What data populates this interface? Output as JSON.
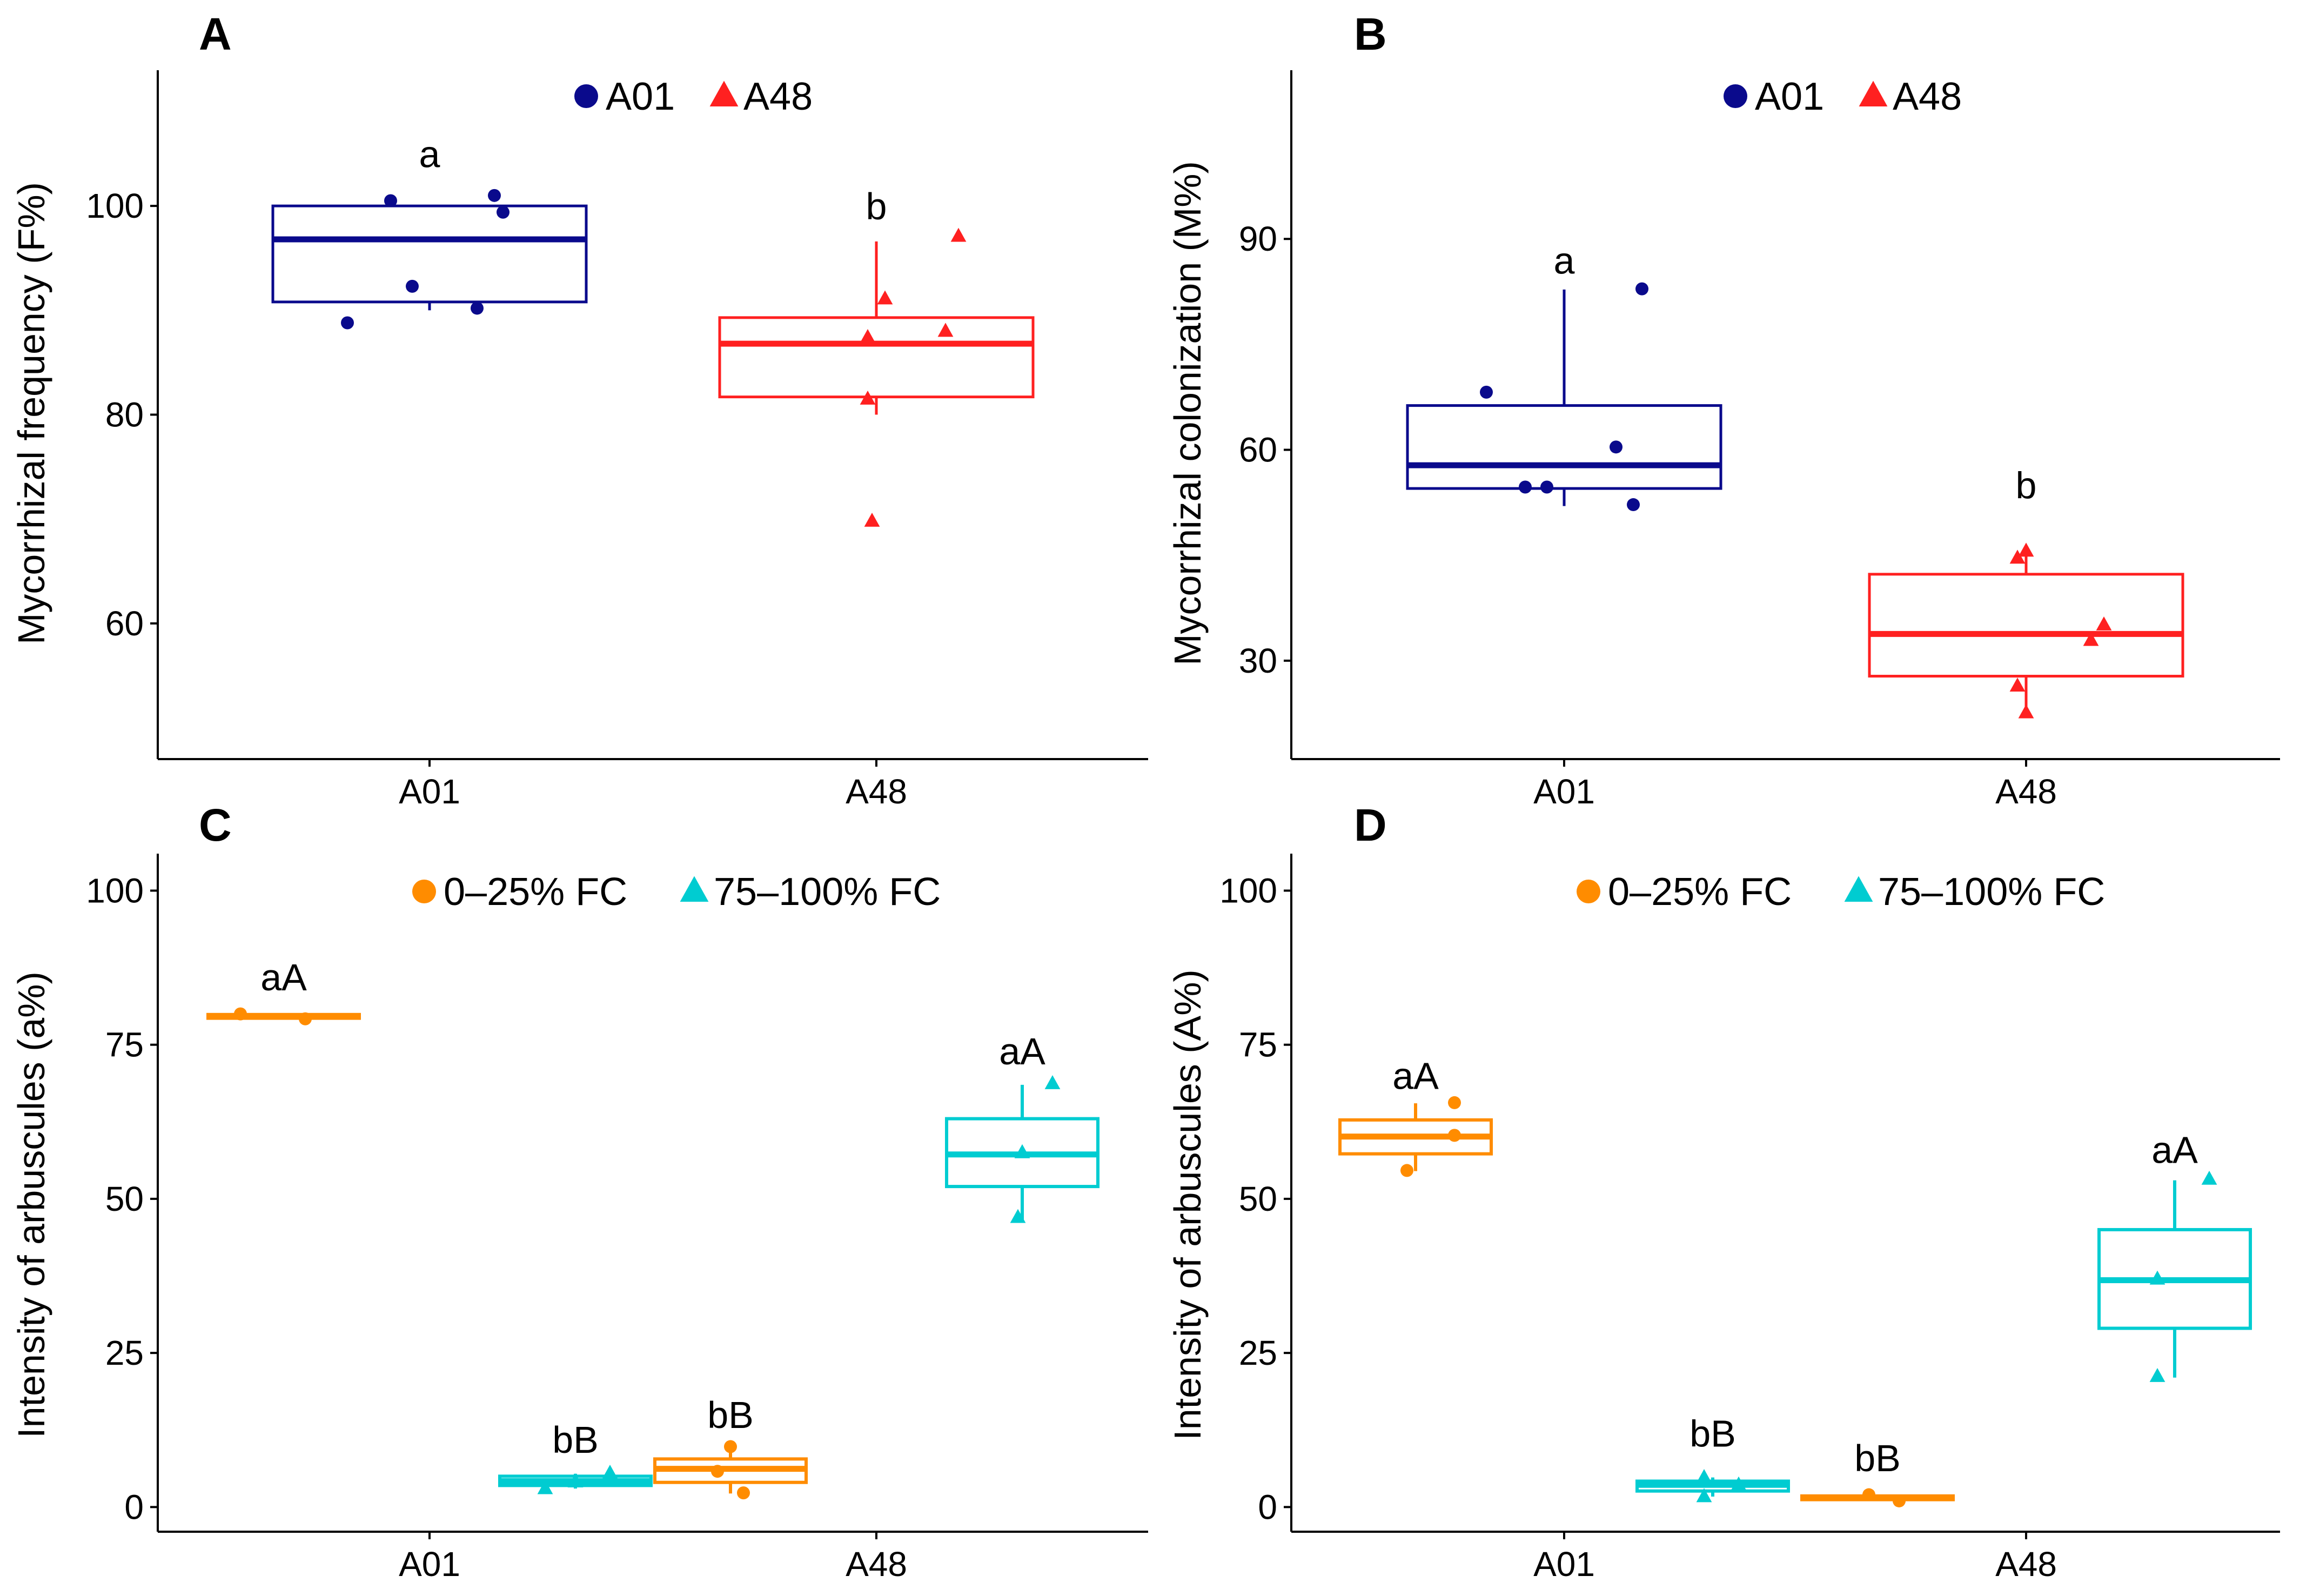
{
  "chart_data": [
    {
      "panel": "A",
      "type": "box",
      "ylabel": "Mycorrhizal frequency (F%)",
      "ylim": [
        47,
        113
      ],
      "yticks": [
        60,
        80,
        100
      ],
      "categories": [
        "A01",
        "A48"
      ],
      "legend": [
        {
          "label": "A01",
          "shape": "circle",
          "color": "#0a0a8c"
        },
        {
          "label": "A48",
          "shape": "triangle",
          "color": "#ff2020"
        }
      ],
      "boxes": [
        {
          "group": "A01",
          "cat": 0,
          "offset": 0,
          "color": "#0a0a8c",
          "q1": 90.8,
          "median": 96.8,
          "q3": 100.0,
          "wlow": 90.0,
          "whigh": 100.0,
          "points": [
            {
              "dx": -0.19,
              "y": 88.8
            },
            {
              "dx": -0.09,
              "y": 100.5
            },
            {
              "dx": -0.04,
              "y": 92.3
            },
            {
              "dx": 0.11,
              "y": 90.2
            },
            {
              "dx": 0.15,
              "y": 101.0
            },
            {
              "dx": 0.17,
              "y": 99.4
            }
          ],
          "label": "a",
          "label_y": 105
        },
        {
          "group": "A48",
          "cat": 1,
          "offset": 0,
          "color": "#ff2020",
          "q1": 81.7,
          "median": 86.8,
          "q3": 89.3,
          "wlow": 80.0,
          "whigh": 96.6,
          "points": [
            {
              "dx": -0.01,
              "y": 69.8
            },
            {
              "dx": -0.02,
              "y": 81.5
            },
            {
              "dx": -0.02,
              "y": 87.4
            },
            {
              "dx": 0.02,
              "y": 91.1
            },
            {
              "dx": 0.16,
              "y": 88.0
            },
            {
              "dx": 0.19,
              "y": 97.1
            }
          ],
          "label": "b",
          "label_y": 100
        }
      ]
    },
    {
      "panel": "B",
      "type": "box",
      "ylabel": "Mycorrhizal colonization (M%)",
      "ylim": [
        16,
        114
      ],
      "yticks": [
        30,
        60,
        90
      ],
      "categories": [
        "A01",
        "A48"
      ],
      "legend": [
        {
          "label": "A01",
          "shape": "circle",
          "color": "#0a0a8c"
        },
        {
          "label": "A48",
          "shape": "triangle",
          "color": "#ff2020"
        }
      ],
      "boxes": [
        {
          "group": "A01",
          "cat": 0,
          "offset": 0,
          "color": "#0a0a8c",
          "q1": 54.5,
          "median": 57.8,
          "q3": 66.3,
          "wlow": 52.0,
          "whigh": 82.8,
          "points": [
            {
              "dx": -0.18,
              "y": 68.2
            },
            {
              "dx": -0.09,
              "y": 54.7
            },
            {
              "dx": -0.04,
              "y": 54.7
            },
            {
              "dx": 0.12,
              "y": 60.4
            },
            {
              "dx": 0.16,
              "y": 52.2
            },
            {
              "dx": 0.18,
              "y": 82.9
            }
          ],
          "label": "a",
          "label_y": 87
        },
        {
          "group": "A48",
          "cat": 1,
          "offset": 0,
          "color": "#ff2020",
          "q1": 27.8,
          "median": 33.8,
          "q3": 42.3,
          "wlow": 22.5,
          "whigh": 45.5,
          "points": [
            {
              "dx": -0.02,
              "y": 44.6
            },
            {
              "dx": 0.0,
              "y": 45.6
            },
            {
              "dx": -0.02,
              "y": 26.4
            },
            {
              "dx": 0.0,
              "y": 22.6
            },
            {
              "dx": 0.15,
              "y": 32.9
            },
            {
              "dx": 0.18,
              "y": 35.1
            }
          ],
          "label": "b",
          "label_y": 55
        }
      ]
    },
    {
      "panel": "C",
      "type": "box",
      "ylabel": "Intensity of arbuscules (a%)",
      "ylim": [
        -4,
        106
      ],
      "yticks": [
        0,
        25,
        50,
        75,
        100
      ],
      "categories": [
        "A01",
        "A48"
      ],
      "legend": [
        {
          "label": "0–25% FC",
          "shape": "circle",
          "color": "#ff8c00"
        },
        {
          "label": "75–100% FC",
          "shape": "triangle",
          "color": "#00ccd1"
        }
      ],
      "boxes": [
        {
          "group": "0–25% FC",
          "cat": 0,
          "offset": -0.5,
          "color": "#ff8c00",
          "q1": 79.3,
          "median": 79.6,
          "q3": 79.9,
          "wlow": 79.3,
          "whigh": 79.9,
          "points": [
            {
              "dx": -0.1,
              "y": 80.0
            },
            {
              "dx": 0.05,
              "y": 79.2
            }
          ],
          "label": "aA",
          "label_y": 86
        },
        {
          "group": "75–100% FC",
          "cat": 0,
          "offset": 0.5,
          "color": "#00ccd1",
          "q1": 3.5,
          "median": 4.2,
          "q3": 5.0,
          "wlow": 3.0,
          "whigh": 5.4,
          "points": [
            {
              "dx": -0.07,
              "y": 3.0
            },
            {
              "dx": 0.0,
              "y": 4.1
            },
            {
              "dx": 0.08,
              "y": 5.5
            }
          ],
          "label": "bB",
          "label_y": 11
        },
        {
          "group": "0–25% FC",
          "cat": 1,
          "offset": -0.5,
          "color": "#ff8c00",
          "q1": 4.0,
          "median": 6.2,
          "q3": 7.8,
          "wlow": 2.2,
          "whigh": 9.8,
          "points": [
            {
              "dx": 0.0,
              "y": 9.8
            },
            {
              "dx": -0.03,
              "y": 5.8
            },
            {
              "dx": 0.03,
              "y": 2.3
            }
          ],
          "label": "bB",
          "label_y": 15
        },
        {
          "group": "75–100% FC",
          "cat": 1,
          "offset": 0.5,
          "color": "#00ccd1",
          "q1": 52.0,
          "median": 57.2,
          "q3": 63.0,
          "wlow": 46.5,
          "whigh": 68.5,
          "points": [
            {
              "dx": 0.07,
              "y": 68.7
            },
            {
              "dx": 0.0,
              "y": 57.5
            },
            {
              "dx": -0.01,
              "y": 47.0
            }
          ],
          "label": "aA",
          "label_y": 74
        }
      ]
    },
    {
      "panel": "D",
      "type": "box",
      "ylabel": "Intensity of arbuscules (A%)",
      "ylim": [
        -4,
        106
      ],
      "yticks": [
        0,
        25,
        50,
        75,
        100
      ],
      "categories": [
        "A01",
        "A48"
      ],
      "legend": [
        {
          "label": "0–25% FC",
          "shape": "circle",
          "color": "#ff8c00"
        },
        {
          "label": "75–100% FC",
          "shape": "triangle",
          "color": "#00ccd1"
        }
      ],
      "boxes": [
        {
          "group": "0–25% FC",
          "cat": 0,
          "offset": -0.5,
          "color": "#ff8c00",
          "q1": 57.3,
          "median": 60.1,
          "q3": 62.8,
          "wlow": 54.5,
          "whigh": 65.5,
          "points": [
            {
              "dx": 0.09,
              "y": 65.6
            },
            {
              "dx": 0.09,
              "y": 60.3
            },
            {
              "dx": -0.02,
              "y": 54.6
            }
          ],
          "label": "aA",
          "label_y": 70
        },
        {
          "group": "75–100% FC",
          "cat": 0,
          "offset": 0.5,
          "color": "#00ccd1",
          "q1": 2.6,
          "median": 3.6,
          "q3": 4.2,
          "wlow": 1.7,
          "whigh": 4.8,
          "points": [
            {
              "dx": -0.02,
              "y": 4.8
            },
            {
              "dx": 0.06,
              "y": 3.6
            },
            {
              "dx": -0.02,
              "y": 1.7
            }
          ],
          "label": "bB",
          "label_y": 12
        },
        {
          "group": "0–25% FC",
          "cat": 1,
          "offset": -0.5,
          "color": "#ff8c00",
          "q1": 1.2,
          "median": 1.5,
          "q3": 1.8,
          "wlow": 1.0,
          "whigh": 2.0,
          "points": [
            {
              "dx": -0.02,
              "y": 2.0
            },
            {
              "dx": 0.05,
              "y": 1.0
            }
          ],
          "label": "bB",
          "label_y": 8
        },
        {
          "group": "75–100% FC",
          "cat": 1,
          "offset": 0.5,
          "color": "#00ccd1",
          "q1": 29.0,
          "median": 36.8,
          "q3": 45.0,
          "wlow": 21.0,
          "whigh": 53.0,
          "points": [
            {
              "dx": 0.08,
              "y": 53.2
            },
            {
              "dx": -0.04,
              "y": 37.0
            },
            {
              "dx": -0.04,
              "y": 21.2
            }
          ],
          "label": "aA",
          "label_y": 58
        }
      ]
    }
  ]
}
